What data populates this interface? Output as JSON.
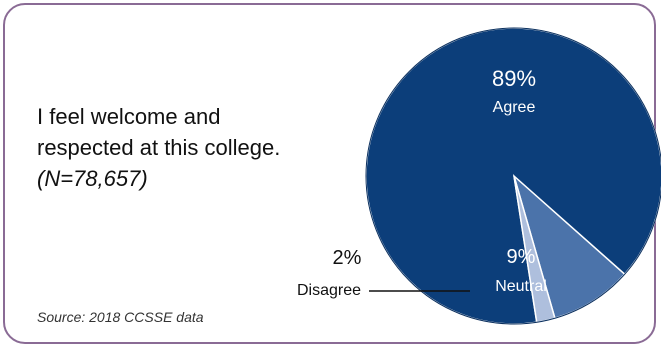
{
  "statement": {
    "line1": "I feel welcome and",
    "line2": "respected at this college.",
    "n": "(N=78,657)"
  },
  "source": "Source: 2018 CCSSE data",
  "colors": {
    "frame": "#8a6b95",
    "agree": "#0c3e7a",
    "neutral": "#4b73aa",
    "disagree": "#aebfdd"
  },
  "chart_data": {
    "type": "pie",
    "slices": [
      {
        "label": "Agree",
        "value": 89,
        "value_label": "89%",
        "color": "#0c3e7a"
      },
      {
        "label": "Neutral",
        "value": 9,
        "value_label": "9%",
        "color": "#4b73aa"
      },
      {
        "label": "Disagree",
        "value": 2,
        "value_label": "2%",
        "color": "#aebfdd"
      }
    ]
  }
}
